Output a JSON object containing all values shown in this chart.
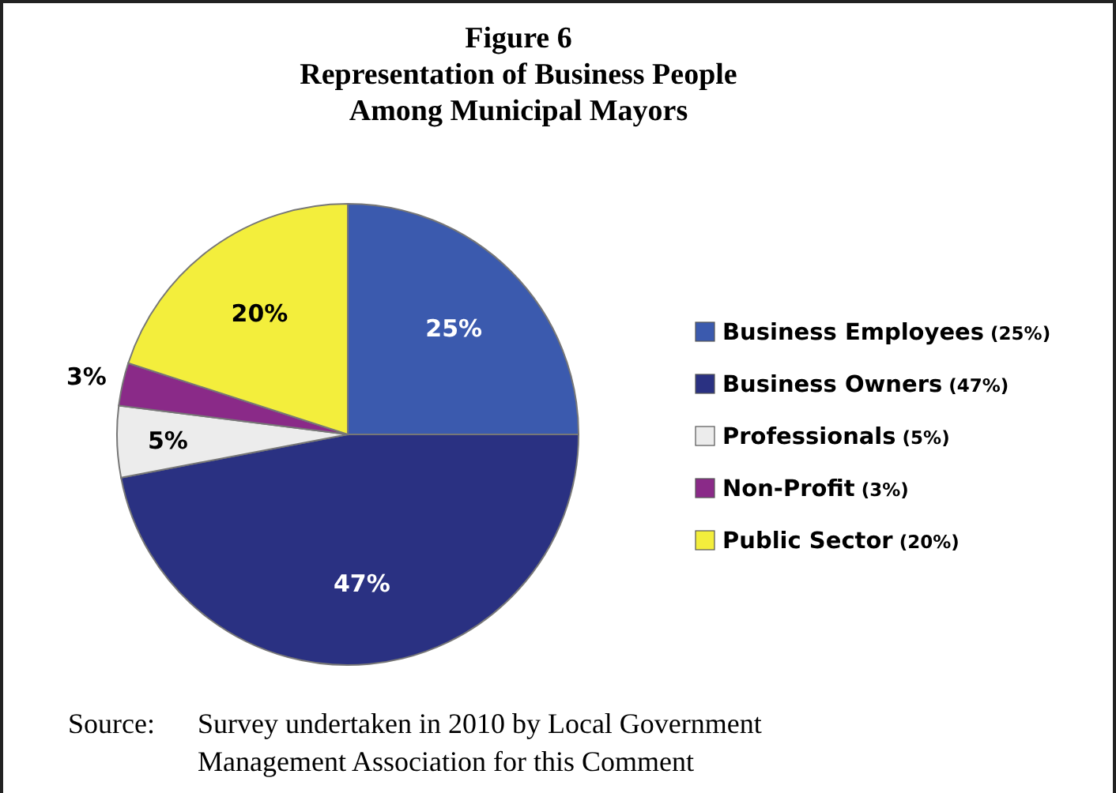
{
  "chart_data": {
    "type": "pie",
    "title": "Figure 6\nRepresentation of Business People\nAmong Municipal Mayors",
    "categories": [
      "Business Employees (25%)",
      "Business Owners (47%)",
      "Professionals (5%)",
      "Non-Profit (3%)",
      "Public Sector (20%)"
    ],
    "values": [
      25,
      47,
      5,
      3,
      20
    ],
    "colors": [
      "#3b5aae",
      "#2a3182",
      "#ececec",
      "#8a2a88",
      "#f3ee3c"
    ],
    "value_labels": [
      "25%",
      "47%",
      "5%",
      "3%",
      "20%"
    ],
    "legend": "right",
    "annotations": [
      "Source:",
      "Survey undertaken in 2010 by Local Government Management Association for this Comment"
    ]
  }
}
